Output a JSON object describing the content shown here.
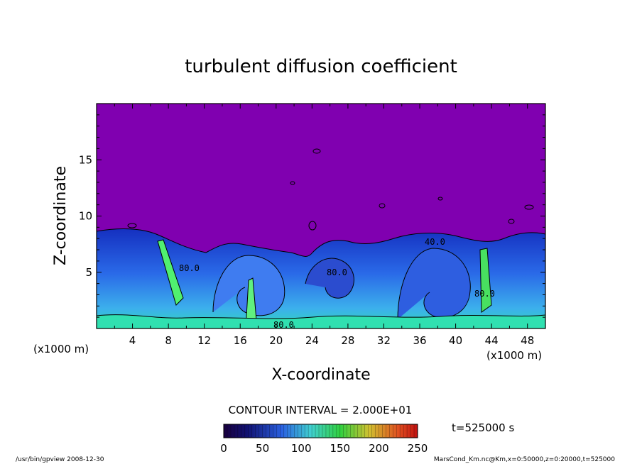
{
  "chart_data": {
    "type": "heatmap",
    "title": "turbulent diffusion coefficient",
    "xlabel": "X-coordinate",
    "ylabel": "Z-coordinate",
    "x_unit": "(x1000 m)",
    "y_unit": "(x1000 m)",
    "xlim": [
      0,
      50
    ],
    "ylim": [
      0,
      20
    ],
    "x_ticks": [
      4,
      8,
      12,
      16,
      20,
      24,
      28,
      32,
      36,
      40,
      44,
      48
    ],
    "y_ticks": [
      5,
      10,
      15
    ],
    "contour_interval": "CONTOUR INTERVAL = 2.000E+01",
    "colorbar": {
      "min": 0,
      "max": 250,
      "ticks": [
        0,
        50,
        100,
        150,
        200,
        250
      ]
    },
    "contour_labels": [
      "80.0",
      "80.0",
      "40.0",
      "80.0",
      "80.0"
    ],
    "time_label": "t=525000 s",
    "grid": false,
    "background_color": "#8000b0"
  },
  "footer": {
    "left": "/usr/bin/gpview   2008-12-30",
    "right": "MarsCond_Km.nc@Km,x=0:50000,z=0:20000,t=525000"
  }
}
